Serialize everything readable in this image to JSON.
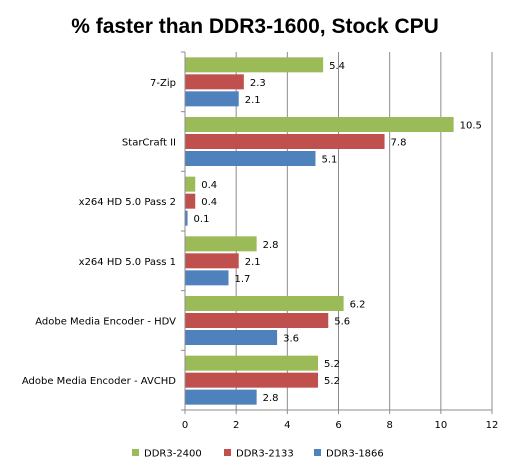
{
  "chart_data": {
    "type": "bar",
    "orientation": "horizontal",
    "title": "% faster than DDR3-1600, Stock CPU",
    "xlabel": "",
    "ylabel": "",
    "categories": [
      "7-Zip",
      "StarCraft II",
      "x264 HD 5.0 Pass 2",
      "x264 HD 5.0 Pass 1",
      "Adobe Media Encoder - HDV",
      "Adobe Media Encoder - AVCHD"
    ],
    "series": [
      {
        "name": "DDR3-2400",
        "color": "#9bbb59",
        "values": [
          5.4,
          10.5,
          0.4,
          2.8,
          6.2,
          5.2
        ]
      },
      {
        "name": "DDR3-2133",
        "color": "#c0504d",
        "values": [
          2.3,
          7.8,
          0.4,
          2.1,
          5.6,
          5.2
        ]
      },
      {
        "name": "DDR3-1866",
        "color": "#4f81bd",
        "values": [
          2.1,
          5.1,
          0.1,
          1.7,
          3.6,
          2.8
        ]
      }
    ],
    "xlim": [
      0,
      12
    ],
    "xticks": [
      0,
      2,
      4,
      6,
      8,
      10,
      12
    ],
    "grid": true,
    "legend": "bottom"
  }
}
